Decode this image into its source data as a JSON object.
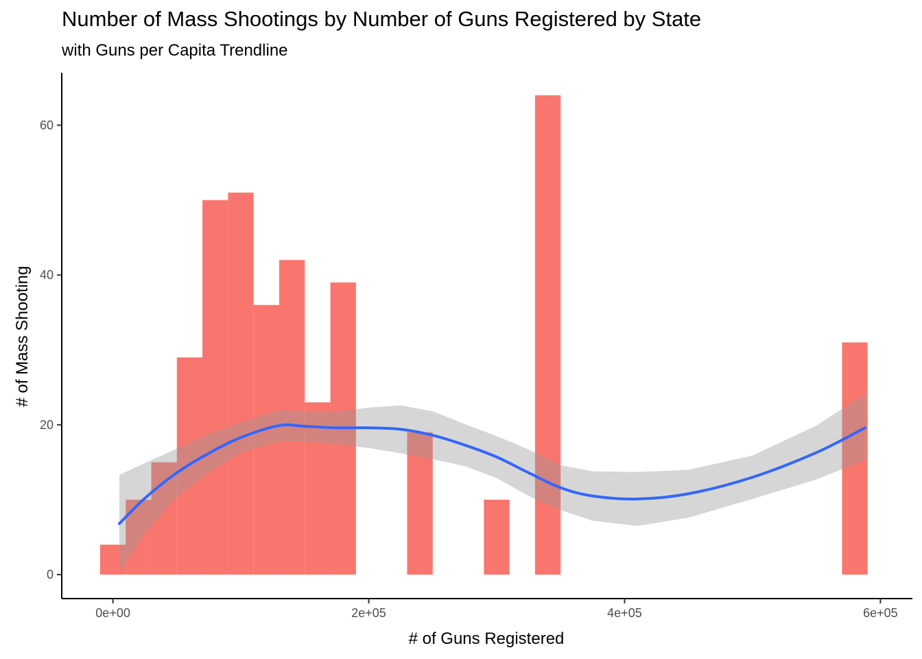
{
  "chart_data": {
    "type": "bar",
    "title": "Number of Mass Shootings by Number of Guns Registered by State",
    "subtitle": "with Guns per Capita Trendline",
    "xlabel": "# of Guns Registered",
    "ylabel": "# of Mass Shooting",
    "xlim": [
      -40000,
      625000
    ],
    "ylim": [
      -3.2,
      67
    ],
    "x_ticks": [
      0,
      200000,
      400000,
      600000
    ],
    "x_tick_labels": [
      "0e+00",
      "2e+05",
      "4e+05",
      "6e+05"
    ],
    "y_ticks": [
      0,
      20,
      40,
      60
    ],
    "y_tick_labels": [
      "0",
      "20",
      "40",
      "60"
    ],
    "bar_width": 20000,
    "grid": false,
    "bar_color": "#F8766D",
    "bars": [
      {
        "x": 0,
        "value": 4
      },
      {
        "x": 20000,
        "value": 10
      },
      {
        "x": 40000,
        "value": 15
      },
      {
        "x": 60000,
        "value": 29
      },
      {
        "x": 80000,
        "value": 50
      },
      {
        "x": 100000,
        "value": 51
      },
      {
        "x": 120000,
        "value": 36
      },
      {
        "x": 140000,
        "value": 42
      },
      {
        "x": 160000,
        "value": 23
      },
      {
        "x": 180000,
        "value": 39
      },
      {
        "x": 240000,
        "value": 19
      },
      {
        "x": 300000,
        "value": 10
      },
      {
        "x": 340000,
        "value": 64
      },
      {
        "x": 580000,
        "value": 31
      }
    ],
    "trendline": {
      "method": "loess",
      "color": "#3366FF",
      "ribbon_color": "#999999",
      "points": [
        {
          "x": 5000,
          "y": 6.8,
          "lower": 0.3,
          "upper": 13.3
        },
        {
          "x": 25000,
          "y": 10.2,
          "lower": 5.5,
          "upper": 14.9
        },
        {
          "x": 50000,
          "y": 13.6,
          "lower": 10.4,
          "upper": 16.8
        },
        {
          "x": 75000,
          "y": 16.2,
          "lower": 13.6,
          "upper": 18.8
        },
        {
          "x": 100000,
          "y": 18.3,
          "lower": 16.3,
          "upper": 20.3
        },
        {
          "x": 130000,
          "y": 19.9,
          "lower": 17.8,
          "upper": 22.0
        },
        {
          "x": 150000,
          "y": 19.8,
          "lower": 17.8,
          "upper": 21.8
        },
        {
          "x": 175000,
          "y": 19.6,
          "lower": 17.4,
          "upper": 21.8
        },
        {
          "x": 200000,
          "y": 19.6,
          "lower": 16.9,
          "upper": 22.3
        },
        {
          "x": 225000,
          "y": 19.4,
          "lower": 16.2,
          "upper": 22.6
        },
        {
          "x": 250000,
          "y": 18.6,
          "lower": 15.4,
          "upper": 21.8
        },
        {
          "x": 275000,
          "y": 17.3,
          "lower": 14.5,
          "upper": 20.1
        },
        {
          "x": 300000,
          "y": 15.7,
          "lower": 12.9,
          "upper": 18.5
        },
        {
          "x": 325000,
          "y": 13.6,
          "lower": 10.5,
          "upper": 16.7
        },
        {
          "x": 350000,
          "y": 11.6,
          "lower": 8.6,
          "upper": 14.6
        },
        {
          "x": 375000,
          "y": 10.5,
          "lower": 7.2,
          "upper": 13.8
        },
        {
          "x": 410000,
          "y": 10.1,
          "lower": 6.5,
          "upper": 13.7
        },
        {
          "x": 450000,
          "y": 10.8,
          "lower": 7.6,
          "upper": 14.0
        },
        {
          "x": 500000,
          "y": 13.0,
          "lower": 10.1,
          "upper": 15.9
        },
        {
          "x": 550000,
          "y": 16.3,
          "lower": 12.7,
          "upper": 19.9
        },
        {
          "x": 588000,
          "y": 19.6,
          "lower": 15.3,
          "upper": 24.1
        }
      ]
    }
  }
}
